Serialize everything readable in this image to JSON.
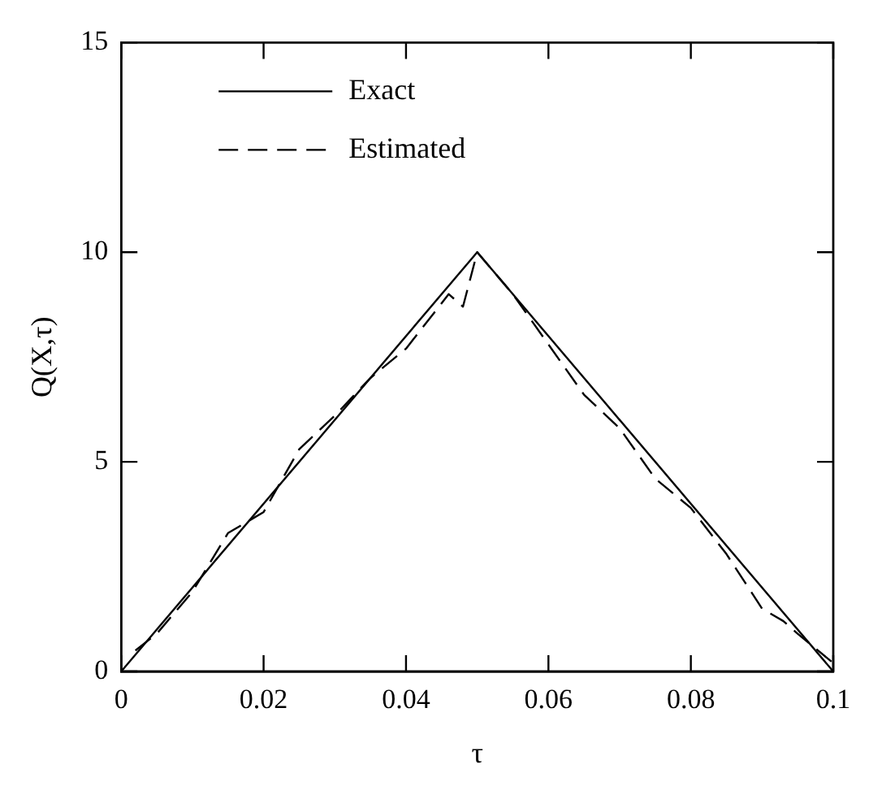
{
  "chart_data": {
    "type": "line",
    "xlabel": "τ",
    "ylabel": "Q(X,τ)",
    "xlim": [
      0,
      0.1
    ],
    "xticks": [
      {
        "value": 0,
        "label": "0"
      },
      0.02,
      0.04,
      0.06,
      0.08,
      0.1
    ],
    "ylim": [
      0,
      15
    ],
    "yticks": [
      0,
      5,
      10,
      15
    ],
    "grid": false,
    "legend": "top left",
    "marker": "none",
    "series": [
      {
        "name": "Exact",
        "color": "#000000",
        "line_style": "solid",
        "x": [
          0,
          0.05,
          0.1
        ],
        "values": [
          0,
          10,
          0
        ]
      },
      {
        "name": "Estimated",
        "color": "#000000",
        "line_style": "dashed",
        "x": [
          0.002,
          0.005,
          0.01,
          0.015,
          0.02,
          0.025,
          0.03,
          0.035,
          0.04,
          0.046,
          0.048,
          0.05,
          0.055,
          0.06,
          0.065,
          0.07,
          0.075,
          0.08,
          0.085,
          0.09,
          0.093,
          0.095,
          0.1
        ],
        "values": [
          0.5,
          0.9,
          1.9,
          3.3,
          3.8,
          5.3,
          6.1,
          7.0,
          7.7,
          9.0,
          8.7,
          10,
          9.0,
          7.8,
          6.6,
          5.8,
          4.6,
          3.9,
          2.8,
          1.5,
          1.2,
          0.9,
          0.2
        ]
      }
    ]
  }
}
